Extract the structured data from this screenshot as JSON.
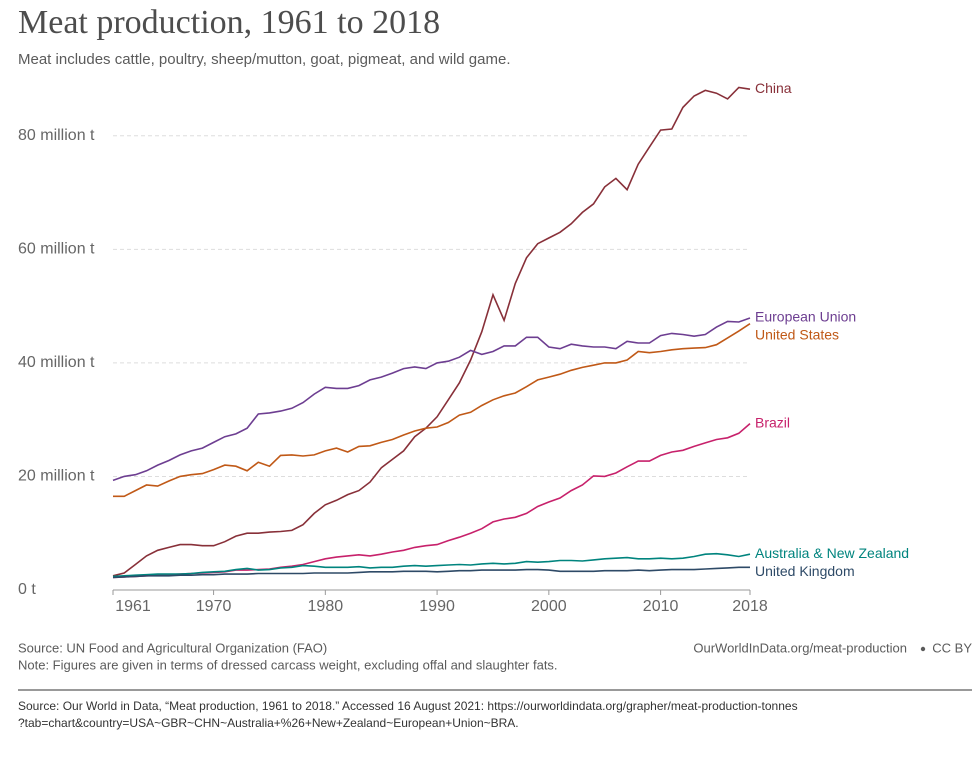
{
  "chart_data": {
    "type": "line",
    "title": "Meat production, 1961 to 2018",
    "subtitle": "Meat includes cattle, poultry, sheep/mutton, goat, pigmeat, and wild game.",
    "source": "Source: UN Food and Agricultural Organization (FAO)",
    "note": "Note: Figures are given in terms of dressed carcass weight, excluding offal and slaughter fats.",
    "url": "OurWorldInData.org/meat-production",
    "license": "CC BY",
    "citation": [
      "Source: Our World in Data, “Meat production, 1961 to 2018.” Accessed 16 August 2021: https://ourworldindata.org/grapher/meat-production-tonnes",
      "?tab=chart&country=USA~GBR~CHN~Australia+%26+New+Zealand~European+Union~BRA."
    ],
    "x": [
      1961,
      1962,
      1963,
      1964,
      1965,
      1966,
      1967,
      1968,
      1969,
      1970,
      1971,
      1972,
      1973,
      1974,
      1975,
      1976,
      1977,
      1978,
      1979,
      1980,
      1981,
      1982,
      1983,
      1984,
      1985,
      1986,
      1987,
      1988,
      1989,
      1990,
      1991,
      1992,
      1993,
      1994,
      1995,
      1996,
      1997,
      1998,
      1999,
      2000,
      2001,
      2002,
      2003,
      2004,
      2005,
      2006,
      2007,
      2008,
      2009,
      2010,
      2011,
      2012,
      2013,
      2014,
      2015,
      2016,
      2017,
      2018
    ],
    "xlim": [
      1961,
      2018
    ],
    "xticks": [
      1961,
      1970,
      1980,
      1990,
      2000,
      2010,
      2018
    ],
    "ylim": [
      0,
      90
    ],
    "yticks": [
      {
        "value": 0,
        "label": "0 t"
      },
      {
        "value": 20,
        "label": "20 million t"
      },
      {
        "value": 40,
        "label": "40 million t"
      },
      {
        "value": 60,
        "label": "60 million t"
      },
      {
        "value": 80,
        "label": "80 million t"
      }
    ],
    "grid": true,
    "series": [
      {
        "name": "China",
        "color": "#883039",
        "values": [
          2.5,
          3,
          4.5,
          6,
          7,
          7.5,
          8,
          8,
          7.8,
          7.8,
          8.5,
          9.5,
          10,
          10,
          10.2,
          10.3,
          10.5,
          11.5,
          13.5,
          15,
          15.8,
          16.8,
          17.5,
          19,
          21.5,
          23,
          24.5,
          27,
          28.5,
          30.5,
          33.5,
          36.5,
          40.5,
          45.5,
          52,
          47.5,
          54,
          58.5,
          61,
          62,
          63,
          64.5,
          66.5,
          68,
          71,
          72.5,
          70.5,
          75,
          78,
          81,
          81.2,
          85,
          87,
          88,
          87.5,
          86.5,
          88.5,
          88.2
        ]
      },
      {
        "name": "European Union",
        "color": "#6D3E91",
        "values": [
          19.3,
          20,
          20.3,
          21,
          22,
          22.8,
          23.8,
          24.5,
          25,
          26,
          27,
          27.5,
          28.5,
          31,
          31.2,
          31.5,
          32,
          33,
          34.5,
          35.7,
          35.5,
          35.5,
          36,
          37,
          37.5,
          38.2,
          39,
          39.3,
          39,
          40,
          40.3,
          41,
          42.2,
          41.5,
          42,
          43,
          43,
          44.5,
          44.5,
          42.8,
          42.5,
          43.3,
          43,
          42.8,
          42.8,
          42.5,
          43.8,
          43.5,
          43.5,
          44.8,
          45.2,
          45,
          44.7,
          45,
          46.3,
          47.3,
          47.2,
          47.9
        ]
      },
      {
        "name": "United States",
        "color": "#C05917",
        "values": [
          16.5,
          16.5,
          17.5,
          18.5,
          18.3,
          19.2,
          20,
          20.3,
          20.5,
          21.2,
          22,
          21.8,
          21,
          22.5,
          21.8,
          23.7,
          23.8,
          23.6,
          23.8,
          24.5,
          25,
          24.3,
          25.3,
          25.4,
          26,
          26.5,
          27.3,
          28,
          28.5,
          28.7,
          29.5,
          30.8,
          31.3,
          32.5,
          33.5,
          34.2,
          34.7,
          35.8,
          37,
          37.5,
          38,
          38.7,
          39.2,
          39.6,
          40,
          40,
          40.5,
          42,
          41.8,
          42,
          42.3,
          42.5,
          42.6,
          42.7,
          43.2,
          44.4,
          45.6,
          46.9
        ]
      },
      {
        "name": "Brazil",
        "color": "#C7216B",
        "values": [
          2.2,
          2.3,
          2.4,
          2.5,
          2.6,
          2.7,
          2.8,
          2.9,
          3,
          3.1,
          3.2,
          3.5,
          3.5,
          3.6,
          3.7,
          4,
          4.2,
          4.5,
          5,
          5.5,
          5.8,
          6,
          6.2,
          6,
          6.3,
          6.7,
          7,
          7.5,
          7.8,
          8,
          8.7,
          9.3,
          10,
          10.8,
          12,
          12.5,
          12.8,
          13.5,
          14.7,
          15.5,
          16.2,
          17.5,
          18.5,
          20.1,
          20,
          20.6,
          21.7,
          22.7,
          22.7,
          23.7,
          24.3,
          24.6,
          25.3,
          25.9,
          26.5,
          26.8,
          27.6,
          29.3
        ]
      },
      {
        "name": "Australia & New Zealand",
        "color": "#00847E",
        "values": [
          2.4,
          2.5,
          2.6,
          2.7,
          2.8,
          2.8,
          2.8,
          2.9,
          3.1,
          3.2,
          3.3,
          3.6,
          3.8,
          3.5,
          3.6,
          3.9,
          4,
          4.3,
          4.2,
          4,
          4,
          4,
          4.1,
          3.9,
          4,
          4,
          4.2,
          4.3,
          4.2,
          4.3,
          4.4,
          4.5,
          4.4,
          4.6,
          4.7,
          4.6,
          4.7,
          5,
          4.9,
          5,
          5.2,
          5.2,
          5.1,
          5.3,
          5.5,
          5.6,
          5.7,
          5.5,
          5.5,
          5.6,
          5.5,
          5.6,
          5.9,
          6.3,
          6.4,
          6.2,
          5.9,
          6.3
        ]
      },
      {
        "name": "United Kingdom",
        "color": "#2E4A67",
        "values": [
          2.2,
          2.3,
          2.4,
          2.5,
          2.5,
          2.5,
          2.6,
          2.6,
          2.7,
          2.7,
          2.8,
          2.8,
          2.8,
          2.9,
          2.9,
          2.9,
          2.9,
          2.9,
          3,
          3,
          3,
          3,
          3.1,
          3.2,
          3.2,
          3.2,
          3.3,
          3.3,
          3.3,
          3.2,
          3.3,
          3.4,
          3.4,
          3.5,
          3.5,
          3.5,
          3.5,
          3.6,
          3.6,
          3.5,
          3.3,
          3.3,
          3.3,
          3.3,
          3.4,
          3.4,
          3.4,
          3.5,
          3.4,
          3.5,
          3.6,
          3.6,
          3.6,
          3.7,
          3.8,
          3.9,
          4,
          4
        ]
      }
    ]
  }
}
